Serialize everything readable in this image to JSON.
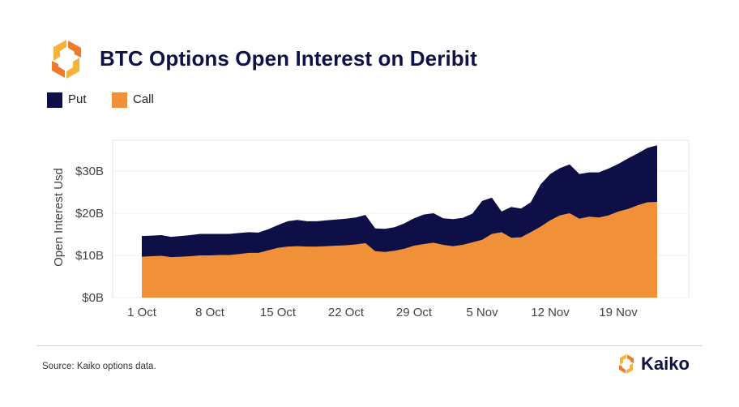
{
  "header": {
    "title": "BTC Options Open Interest on Deribit"
  },
  "footer": {
    "source": "Source: Kaiko options data.",
    "brand": "Kaiko"
  },
  "colors": {
    "put": "#0e0f47",
    "call": "#f0913a",
    "title": "#0f1149",
    "logo_light": "#f7b23b",
    "logo_dark": "#ee7b2b"
  },
  "icons": {
    "logo": "kaiko-logo-icon",
    "brand": "kaiko-logo-icon"
  },
  "chart_data": {
    "type": "area",
    "stacked": true,
    "title": "BTC Options Open Interest on Deribit",
    "xlabel": "",
    "ylabel": "Open Interest Usd",
    "x_ticks": [
      "1 Oct",
      "8 Oct",
      "15 Oct",
      "22 Oct",
      "29 Oct",
      "5 Nov",
      "12 Nov",
      "19 Nov"
    ],
    "y_ticks": [
      "$0B",
      "$10B",
      "$20B",
      "$30B"
    ],
    "ylim": [
      0,
      36
    ],
    "y_unit": "billion USD",
    "legend": "top-left",
    "grid": true,
    "x": [
      "1 Oct",
      "2 Oct",
      "3 Oct",
      "4 Oct",
      "5 Oct",
      "6 Oct",
      "7 Oct",
      "8 Oct",
      "9 Oct",
      "10 Oct",
      "11 Oct",
      "12 Oct",
      "13 Oct",
      "14 Oct",
      "15 Oct",
      "16 Oct",
      "17 Oct",
      "18 Oct",
      "19 Oct",
      "20 Oct",
      "21 Oct",
      "22 Oct",
      "23 Oct",
      "24 Oct",
      "25 Oct",
      "26 Oct",
      "27 Oct",
      "28 Oct",
      "29 Oct",
      "30 Oct",
      "31 Oct",
      "1 Nov",
      "2 Nov",
      "3 Nov",
      "4 Nov",
      "5 Nov",
      "6 Nov",
      "7 Nov",
      "8 Nov",
      "9 Nov",
      "10 Nov",
      "11 Nov",
      "12 Nov",
      "13 Nov",
      "14 Nov",
      "15 Nov",
      "16 Nov",
      "17 Nov",
      "18 Nov",
      "19 Nov",
      "20 Nov",
      "21 Nov",
      "22 Nov",
      "23 Nov"
    ],
    "series": [
      {
        "name": "Call",
        "values": [
          9.7,
          9.8,
          9.9,
          9.6,
          9.7,
          9.8,
          10.0,
          10.0,
          10.1,
          10.1,
          10.3,
          10.6,
          10.6,
          11.2,
          11.8,
          12.1,
          12.2,
          12.1,
          12.1,
          12.2,
          12.3,
          12.4,
          12.6,
          12.9,
          11.0,
          10.8,
          11.1,
          11.6,
          12.3,
          12.7,
          13.0,
          12.5,
          12.2,
          12.5,
          13.1,
          13.7,
          15.1,
          15.5,
          14.2,
          14.3,
          15.5,
          16.8,
          18.3,
          19.5,
          20.0,
          18.7,
          19.2,
          19.0,
          19.5,
          20.4,
          21.0,
          21.9,
          22.6,
          22.7
        ]
      },
      {
        "name": "Put",
        "values": [
          4.9,
          4.9,
          4.9,
          4.8,
          4.9,
          5.0,
          5.1,
          5.1,
          5.0,
          5.0,
          5.0,
          4.9,
          4.8,
          5.0,
          5.4,
          6.0,
          6.2,
          6.0,
          6.0,
          6.1,
          6.2,
          6.3,
          6.4,
          6.7,
          5.4,
          5.5,
          5.6,
          6.0,
          6.5,
          7.0,
          7.0,
          6.3,
          6.4,
          6.4,
          6.8,
          9.2,
          8.6,
          4.9,
          7.3,
          6.8,
          7.1,
          10.0,
          11.0,
          11.2,
          11.6,
          10.6,
          10.5,
          10.7,
          11.1,
          11.3,
          12.0,
          12.3,
          12.9,
          13.4
        ]
      }
    ]
  }
}
